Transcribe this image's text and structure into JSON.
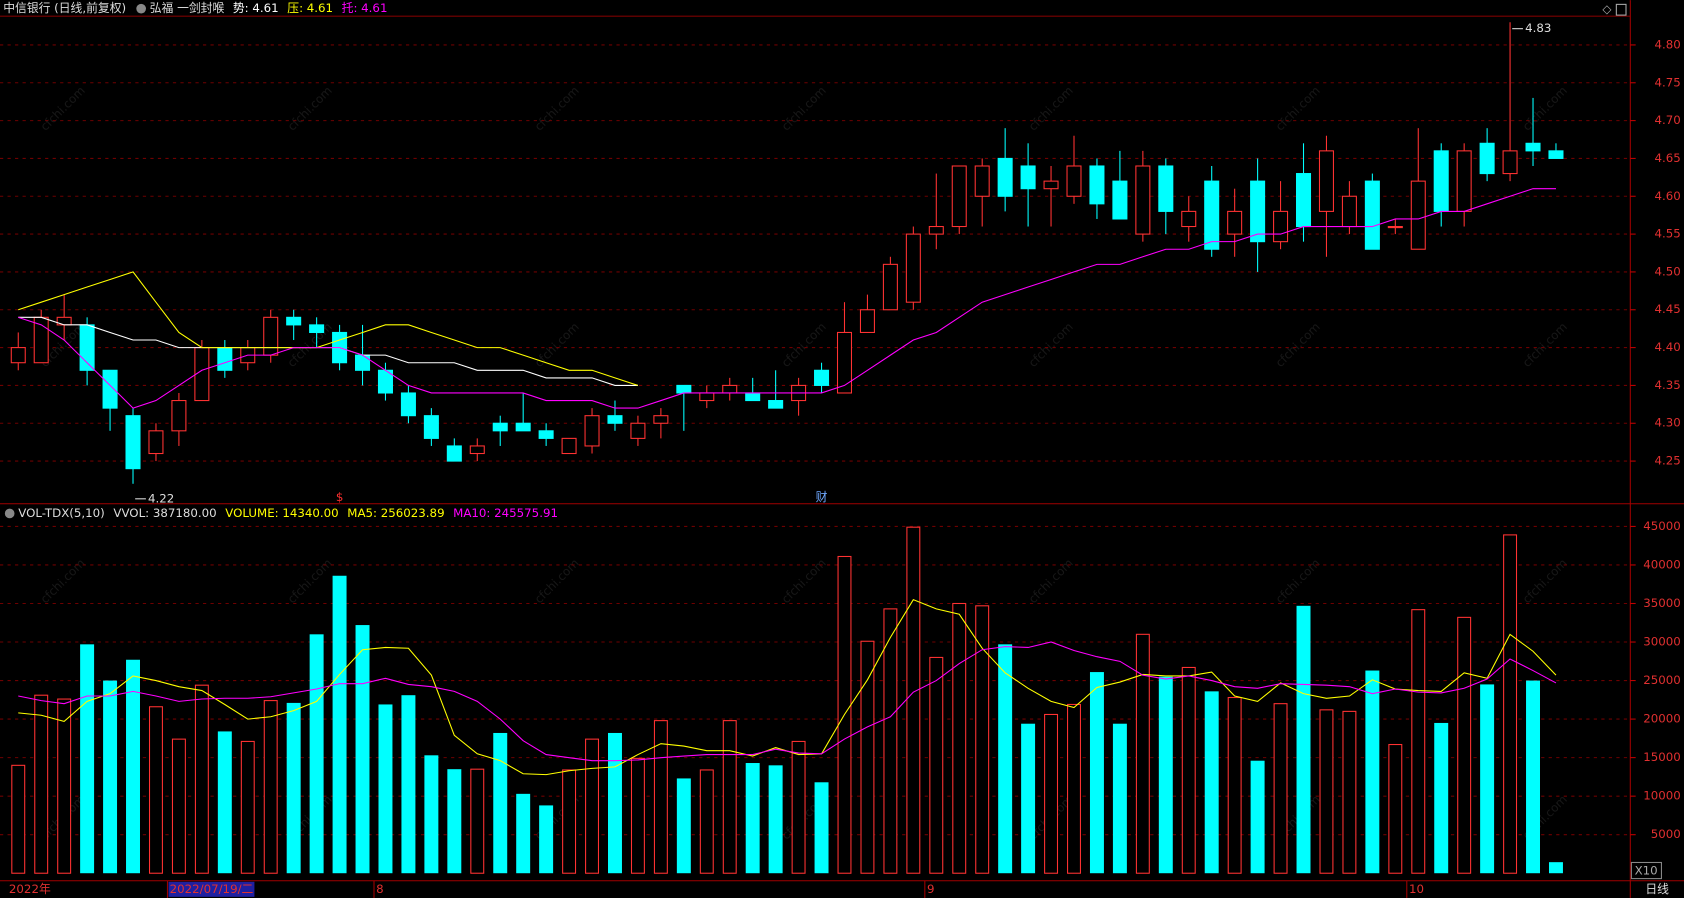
{
  "header": {
    "title": "中信银行 (日线,前复权)",
    "indicator": "弘福 一剑封喉",
    "items": [
      {
        "text": "势: 4.61",
        "color": "#ffffff"
      },
      {
        "text": "压: 4.61",
        "color": "#ffff00"
      },
      {
        "text": "托: 4.61",
        "color": "#ff00ff"
      }
    ]
  },
  "watermark": "cfchi.com",
  "chart_data": [
    {
      "type": "candlestick",
      "up_color": "#ff3232",
      "down_color": "#00ffff",
      "open": [
        4.38,
        4.38,
        4.43,
        4.43,
        4.37,
        4.31,
        4.26,
        4.29,
        4.33,
        4.4,
        4.38,
        4.39,
        4.44,
        4.43,
        4.42,
        4.39,
        4.37,
        4.34,
        4.31,
        4.27,
        4.26,
        4.3,
        4.3,
        4.29,
        4.26,
        4.27,
        4.31,
        4.28,
        4.3,
        4.35,
        4.33,
        4.34,
        4.34,
        4.33,
        4.33,
        4.37,
        4.34,
        4.42,
        4.45,
        4.46,
        4.55,
        4.56,
        4.6,
        4.65,
        4.64,
        4.61,
        4.6,
        4.64,
        4.62,
        4.55,
        4.64,
        4.56,
        4.62,
        4.55,
        4.62,
        4.54,
        4.63,
        4.58,
        4.56,
        4.62,
        4.56,
        4.53,
        4.66,
        4.58,
        4.67,
        4.63,
        4.67,
        4.66
      ],
      "high": [
        4.42,
        4.45,
        4.47,
        4.44,
        4.37,
        4.32,
        4.3,
        4.34,
        4.41,
        4.41,
        4.41,
        4.45,
        4.45,
        4.44,
        4.43,
        4.43,
        4.38,
        4.35,
        4.32,
        4.28,
        4.28,
        4.31,
        4.34,
        4.3,
        4.28,
        4.32,
        4.33,
        4.31,
        4.32,
        4.35,
        4.35,
        4.36,
        4.36,
        4.37,
        4.36,
        4.38,
        4.46,
        4.47,
        4.52,
        4.56,
        4.63,
        4.64,
        4.65,
        4.69,
        4.67,
        4.64,
        4.68,
        4.65,
        4.66,
        4.66,
        4.65,
        4.6,
        4.64,
        4.61,
        4.65,
        4.62,
        4.67,
        4.68,
        4.62,
        4.63,
        4.57,
        4.69,
        4.67,
        4.67,
        4.69,
        4.83,
        4.73,
        4.67
      ],
      "low": [
        4.37,
        4.38,
        4.41,
        4.35,
        4.29,
        4.22,
        4.25,
        4.27,
        4.33,
        4.36,
        4.37,
        4.38,
        4.41,
        4.4,
        4.37,
        4.35,
        4.33,
        4.3,
        4.27,
        4.25,
        4.25,
        4.27,
        4.29,
        4.27,
        4.26,
        4.26,
        4.29,
        4.27,
        4.28,
        4.29,
        4.32,
        4.33,
        4.33,
        4.32,
        4.31,
        4.34,
        4.34,
        4.42,
        4.45,
        4.45,
        4.53,
        4.55,
        4.56,
        4.58,
        4.56,
        4.56,
        4.59,
        4.57,
        4.57,
        4.54,
        4.55,
        4.54,
        4.52,
        4.52,
        4.5,
        4.53,
        4.54,
        4.52,
        4.55,
        4.53,
        4.55,
        4.53,
        4.56,
        4.56,
        4.62,
        4.62,
        4.64,
        4.65
      ],
      "close": [
        4.4,
        4.44,
        4.44,
        4.37,
        4.32,
        4.24,
        4.29,
        4.33,
        4.4,
        4.37,
        4.4,
        4.44,
        4.43,
        4.42,
        4.38,
        4.37,
        4.34,
        4.31,
        4.28,
        4.25,
        4.27,
        4.29,
        4.29,
        4.28,
        4.28,
        4.31,
        4.3,
        4.3,
        4.31,
        4.34,
        4.34,
        4.35,
        4.33,
        4.32,
        4.35,
        4.35,
        4.42,
        4.45,
        4.51,
        4.55,
        4.56,
        4.64,
        4.64,
        4.6,
        4.61,
        4.62,
        4.64,
        4.59,
        4.57,
        4.64,
        4.58,
        4.58,
        4.53,
        4.58,
        4.54,
        4.58,
        4.56,
        4.66,
        4.6,
        4.53,
        4.56,
        4.62,
        4.58,
        4.66,
        4.63,
        4.66,
        4.66,
        4.65
      ],
      "lines": [
        {
          "color": "#ffffff",
          "values": [
            4.44,
            4.44,
            4.43,
            4.43,
            4.42,
            4.41,
            4.41,
            4.4,
            4.4,
            4.4,
            4.4,
            4.4,
            4.4,
            4.4,
            4.4,
            4.39,
            4.39,
            4.38,
            4.38,
            4.38,
            4.37,
            4.37,
            4.37,
            4.36,
            4.36,
            4.36,
            4.35,
            4.35,
            null,
            null,
            null,
            null,
            null,
            null,
            null,
            null,
            null,
            null,
            null,
            null,
            null,
            null,
            null,
            null,
            null,
            null,
            null,
            null,
            null,
            null,
            null,
            null,
            null,
            null,
            null,
            null,
            null,
            null,
            null,
            null,
            null,
            null,
            null,
            null,
            null,
            null,
            null,
            null
          ]
        },
        {
          "color": "#ffff00",
          "values": [
            4.45,
            4.46,
            4.47,
            4.48,
            4.49,
            4.5,
            4.46,
            4.42,
            4.4,
            4.4,
            4.4,
            4.4,
            4.4,
            4.4,
            4.41,
            4.42,
            4.43,
            4.43,
            4.42,
            4.41,
            4.4,
            4.4,
            4.39,
            4.38,
            4.37,
            4.37,
            4.36,
            4.35,
            null,
            null,
            null,
            null,
            null,
            null,
            null,
            null,
            null,
            null,
            null,
            null,
            null,
            null,
            null,
            null,
            null,
            null,
            null,
            null,
            null,
            null,
            null,
            null,
            null,
            null,
            null,
            null,
            null,
            null,
            null,
            null,
            null,
            null,
            null,
            null,
            null,
            null,
            null,
            null
          ]
        },
        {
          "color": "#ff00ff",
          "values": [
            4.44,
            4.43,
            4.41,
            4.38,
            4.35,
            4.32,
            4.33,
            4.35,
            4.37,
            4.38,
            4.39,
            4.39,
            4.4,
            4.4,
            4.4,
            4.39,
            4.37,
            4.35,
            4.34,
            4.34,
            4.34,
            4.34,
            4.34,
            4.33,
            4.33,
            4.33,
            4.32,
            4.32,
            4.33,
            4.34,
            4.34,
            4.34,
            4.34,
            4.34,
            4.34,
            4.34,
            4.35,
            4.37,
            4.39,
            4.41,
            4.42,
            4.44,
            4.46,
            4.47,
            4.48,
            4.49,
            4.5,
            4.51,
            4.51,
            4.52,
            4.53,
            4.53,
            4.54,
            4.54,
            4.55,
            4.55,
            4.56,
            4.56,
            4.56,
            4.56,
            4.57,
            4.57,
            4.58,
            4.58,
            4.59,
            4.6,
            4.61,
            4.61
          ]
        }
      ],
      "ylim": [
        4.195,
        4.838
      ],
      "yticks": [
        {
          "value": 4.25,
          "label": "4.25"
        },
        {
          "value": 4.3,
          "label": "4.30"
        },
        {
          "value": 4.35,
          "label": "4.35"
        },
        {
          "value": 4.4,
          "label": "4.40"
        },
        {
          "value": 4.45,
          "label": "4.45"
        },
        {
          "value": 4.5,
          "label": "4.50"
        },
        {
          "value": 4.55,
          "label": "4.55"
        },
        {
          "value": 4.6,
          "label": "4.60"
        },
        {
          "value": 4.65,
          "label": "4.65"
        },
        {
          "value": 4.7,
          "label": "4.70"
        },
        {
          "value": 4.75,
          "label": "4.75"
        },
        {
          "value": 4.8,
          "label": "4.80"
        }
      ],
      "grid": true,
      "extreme_labels": [
        4.83,
        4.22
      ],
      "event_labels": [
        null,
        null,
        null,
        null,
        null,
        null,
        null,
        null,
        null,
        null,
        null,
        null,
        null,
        null,
        "$",
        null,
        null,
        null,
        null,
        null,
        null,
        null,
        null,
        null,
        null,
        null,
        null,
        null,
        null,
        null,
        null,
        null,
        null,
        null,
        null,
        "财",
        null,
        null,
        null,
        null,
        null,
        null,
        null,
        null,
        null,
        null,
        null,
        null,
        null,
        null,
        null,
        null,
        null,
        null,
        null,
        null,
        null,
        null,
        null,
        null,
        null,
        null,
        null,
        null,
        null,
        null,
        null,
        null
      ]
    },
    {
      "type": "bar",
      "up_color": "#ff3232",
      "down_color": "#00ffff",
      "header_items": [
        {
          "text": "VOL-TDX(5,10)",
          "color": "#dddddd"
        },
        {
          "text": "VVOL: 387180.00",
          "color": "#dddddd"
        },
        {
          "text": "VOLUME: 14340.00",
          "color": "#ffff00"
        },
        {
          "text": "MA5: 256023.89",
          "color": "#ffff00"
        },
        {
          "text": "MA10: 245575.91",
          "color": "#ff00ff"
        }
      ],
      "categories": [
        "2022年",
        null,
        null,
        null,
        null,
        null,
        null,
        "2022/07/19/二",
        null,
        null,
        null,
        null,
        null,
        null,
        null,
        null,
        "8",
        null,
        null,
        null,
        null,
        null,
        null,
        null,
        null,
        null,
        null,
        null,
        null,
        null,
        null,
        null,
        null,
        null,
        null,
        null,
        null,
        null,
        null,
        null,
        "9",
        null,
        null,
        null,
        null,
        null,
        null,
        null,
        null,
        null,
        null,
        null,
        null,
        null,
        null,
        null,
        null,
        null,
        null,
        null,
        null,
        "10",
        null,
        null,
        null,
        null,
        null,
        null
      ],
      "values": [
        14000,
        23100,
        22600,
        29700,
        25000,
        27700,
        21600,
        17400,
        24400,
        18400,
        17100,
        22400,
        22100,
        31000,
        38600,
        32200,
        21900,
        23100,
        15300,
        13500,
        13500,
        18200,
        10300,
        8800,
        13400,
        17400,
        18200,
        14900,
        19800,
        12300,
        13400,
        19800,
        14300,
        14000,
        17100,
        11800,
        41100,
        30100,
        34300,
        44900,
        28000,
        35000,
        34700,
        29700,
        19400,
        20600,
        21900,
        26100,
        19400,
        31000,
        25500,
        26700,
        23600,
        22800,
        14600,
        22000,
        34700,
        21200,
        21000,
        26300,
        16700,
        34200,
        19500,
        33200,
        24500,
        43900,
        25000,
        1434
      ],
      "lines": [
        {
          "color": "#ffff00",
          "values": [
            20800,
            20500,
            19700,
            22300,
            23300,
            25600,
            25000,
            24200,
            23700,
            21900,
            20000,
            20300,
            21100,
            22300,
            25800,
            29000,
            29300,
            29200,
            25700,
            17900,
            15500,
            14600,
            12900,
            12800,
            13300,
            13600,
            13800,
            15400,
            16800,
            16500,
            15900,
            15900,
            15200,
            16300,
            15400,
            15500,
            20600,
            25100,
            30600,
            35500,
            34300,
            33600,
            29200,
            26000,
            24000,
            22300,
            21500,
            24100,
            24800,
            25800,
            25600,
            25600,
            26100,
            23000,
            22300,
            24700,
            23300,
            22700,
            23000,
            25100,
            23900,
            23700,
            23600,
            26000,
            25300,
            31000,
            28800,
            25700
          ]
        },
        {
          "color": "#ff00ff",
          "values": [
            23000,
            22400,
            22000,
            23000,
            23000,
            23600,
            23000,
            22300,
            22600,
            22700,
            22700,
            22900,
            23400,
            23900,
            24600,
            24600,
            25300,
            24500,
            24200,
            23600,
            22300,
            20000,
            17200,
            15400,
            15000,
            14600,
            14600,
            14700,
            15000,
            15200,
            15400,
            15400,
            15400,
            16100,
            15600,
            15500,
            17400,
            19000,
            20300,
            23500,
            25000,
            27200,
            29000,
            29400,
            29300,
            30000,
            28900,
            28100,
            27500,
            25700,
            25200,
            25600,
            25000,
            24200,
            24000,
            24600,
            24500,
            24400,
            24200,
            23300,
            23900,
            23500,
            23400,
            24000,
            25200,
            27800,
            26300,
            24700
          ]
        }
      ],
      "ylim": [
        0,
        47800
      ],
      "yticks": [
        5000,
        10000,
        15000,
        20000,
        25000,
        30000,
        35000,
        40000,
        45000
      ],
      "grid": true,
      "scale_label": "X10",
      "period_label": "日线"
    }
  ]
}
